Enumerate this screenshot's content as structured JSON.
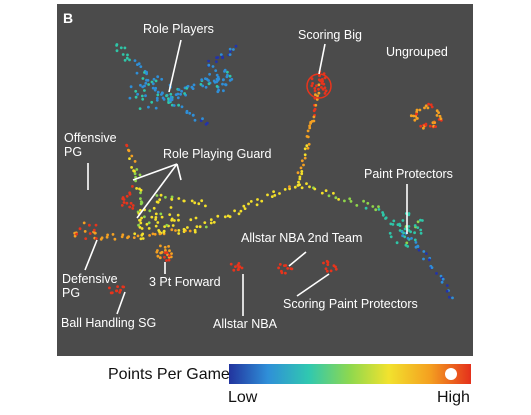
{
  "panel_label": "B",
  "labels": {
    "role_players": "Role Players",
    "scoring_big": "Scoring Big",
    "ungrouped": "Ungrouped",
    "offensive_pg": "Offensive\nPG",
    "role_playing_guard": "Role Playing Guard",
    "paint_protectors": "Paint Protectors",
    "allstar_2nd": "Allstar NBA 2nd Team",
    "defensive_pg": "Defensive\nPG",
    "three_pt_forward": "3 Pt Forward",
    "ball_handling_sg": "Ball Handling SG",
    "allstar_nba": "Allstar NBA",
    "scoring_paint": "Scoring Paint Protectors"
  },
  "legend": {
    "title": "Points Per Game",
    "low": "Low",
    "high": "High"
  },
  "colors": {
    "background": "#4b4b4b",
    "gradient": [
      "#2233aa",
      "#2f8fd8",
      "#2fc6a8",
      "#8fd64a",
      "#f4e02a",
      "#f4a022",
      "#e8341c"
    ]
  }
}
